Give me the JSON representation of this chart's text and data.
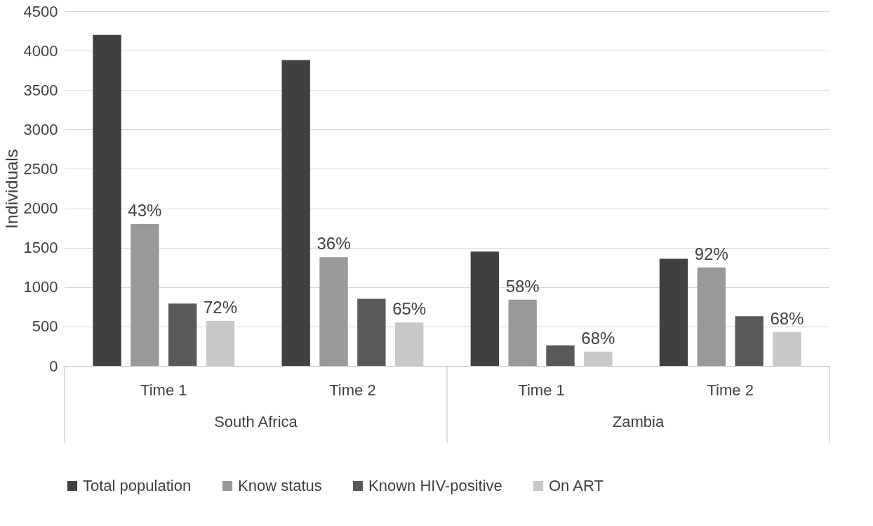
{
  "chart_data": {
    "type": "bar",
    "ylabel": "Individuals",
    "categories": [
      "Time 1",
      "Time 2",
      "Time 1",
      "Time 2"
    ],
    "annotations": [
      "43%",
      "36%",
      "58%",
      "92%",
      "72%",
      "65%",
      "68%",
      "68%",
      "South Africa",
      "Zambia"
    ],
    "series": [
      {
        "name": "Total population",
        "color": "#404040",
        "values": [
          4200,
          3880,
          1450,
          1360
        ]
      },
      {
        "name": "Know status",
        "color": "#999999",
        "values": [
          1800,
          1380,
          840,
          1250
        ]
      },
      {
        "name": "Known HIV-positive",
        "color": "#595959",
        "values": [
          790,
          850,
          260,
          630
        ]
      },
      {
        "name": "On ART",
        "color": "#c8c8c8",
        "values": [
          570,
          550,
          180,
          430
        ]
      }
    ],
    "ylim": [
      0,
      4500
    ],
    "yticks": [
      0,
      500,
      1000,
      1500,
      2000,
      2500,
      3000,
      3500,
      4000,
      4500
    ],
    "grid": "y",
    "legend": "bottom"
  }
}
